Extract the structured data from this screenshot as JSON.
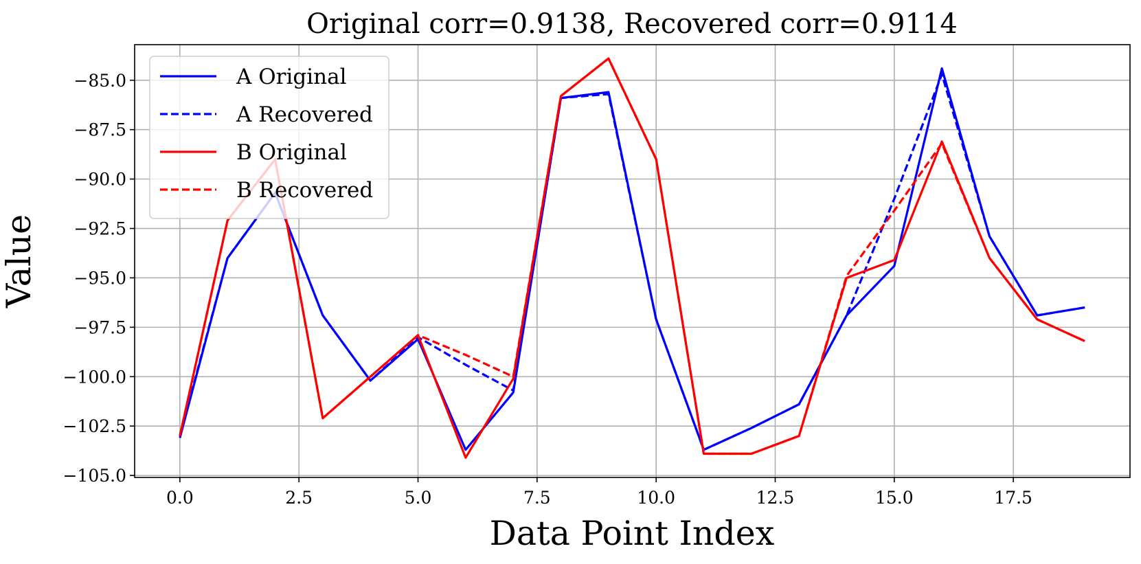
{
  "chart_data": {
    "type": "line",
    "title": "Original corr=0.9138, Recovered corr=0.9114",
    "xlabel": "Data Point Index",
    "ylabel": "Value",
    "x": [
      0,
      1,
      2,
      3,
      4,
      5,
      6,
      7,
      8,
      9,
      10,
      11,
      12,
      13,
      14,
      15,
      16,
      17,
      18,
      19
    ],
    "xlim": [
      -0.95,
      19.95
    ],
    "ylim": [
      -105.1,
      -83.2
    ],
    "xticks": [
      0.0,
      2.5,
      5.0,
      7.5,
      10.0,
      12.5,
      15.0,
      17.5
    ],
    "xtick_labels": [
      "0.0",
      "2.5",
      "5.0",
      "7.5",
      "10.0",
      "12.5",
      "15.0",
      "17.5"
    ],
    "yticks": [
      -105.0,
      -102.5,
      -100.0,
      -97.5,
      -95.0,
      -92.5,
      -90.0,
      -87.5,
      -85.0
    ],
    "ytick_labels": [
      "−105.0",
      "−102.5",
      "−100.0",
      "−97.5",
      "−95.0",
      "−92.5",
      "−90.0",
      "−87.5",
      "−85.0"
    ],
    "grid": true,
    "legend_position": "top-left",
    "series": [
      {
        "name": "A Original",
        "color": "#0000ff",
        "style": "solid",
        "values": [
          -103.1,
          -94.0,
          -90.7,
          -96.9,
          -100.2,
          -98.1,
          -103.7,
          -100.8,
          -85.9,
          -85.6,
          -97.1,
          -103.7,
          -102.6,
          -101.4,
          -96.9,
          -94.4,
          -84.4,
          -92.9,
          -96.9,
          -96.5
        ]
      },
      {
        "name": "A Recovered",
        "color": "#0000ff",
        "style": "dashed",
        "values": [
          -103.0,
          -94.0,
          -90.7,
          -96.9,
          -100.2,
          -98.0,
          -99.4,
          -100.7,
          -85.9,
          -85.7,
          -97.1,
          -103.7,
          -102.6,
          -101.4,
          -96.9,
          -91.0,
          -84.7,
          -92.9,
          -96.9,
          -96.5
        ]
      },
      {
        "name": "B Original",
        "color": "#ff0000",
        "style": "solid",
        "values": [
          -103.0,
          -92.1,
          -89.0,
          -102.1,
          -100.0,
          -97.9,
          -104.1,
          -100.1,
          -85.8,
          -83.9,
          -89.0,
          -103.9,
          -103.9,
          -103.0,
          -95.0,
          -94.1,
          -88.1,
          -94.0,
          -97.1,
          -98.2
        ]
      },
      {
        "name": "B Recovered",
        "color": "#ff0000",
        "style": "dashed",
        "values": [
          -103.0,
          -92.1,
          -89.0,
          -102.1,
          -100.0,
          -97.9,
          -98.9,
          -100.0,
          -85.8,
          -83.9,
          -89.0,
          -103.9,
          -103.9,
          -103.0,
          -94.9,
          -91.6,
          -88.2,
          -94.0,
          -97.1,
          -98.2
        ]
      }
    ]
  }
}
